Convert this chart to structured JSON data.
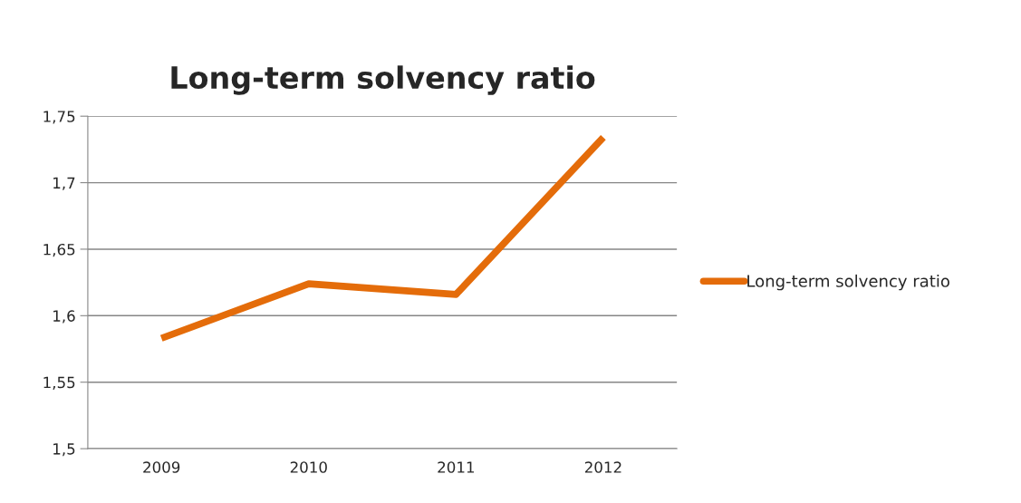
{
  "chart_data": {
    "type": "line",
    "title": "Long-term solvency ratio",
    "categories": [
      "2009",
      "2010",
      "2011",
      "2012"
    ],
    "series": [
      {
        "name": "Long-term solvency ratio",
        "color": "#e46c0a",
        "values": [
          1.583,
          1.624,
          1.616,
          1.734
        ]
      }
    ],
    "ylim": [
      1.5,
      1.75
    ],
    "yticks": [
      {
        "value": 1.5,
        "label": "1,5"
      },
      {
        "value": 1.55,
        "label": "1,55"
      },
      {
        "value": 1.6,
        "label": "1,6"
      },
      {
        "value": 1.65,
        "label": "1,65"
      },
      {
        "value": 1.7,
        "label": "1,7"
      },
      {
        "value": 1.75,
        "label": "1,75"
      }
    ],
    "grid": "y",
    "legend": "right",
    "marker": "none",
    "line_style": "solid"
  }
}
